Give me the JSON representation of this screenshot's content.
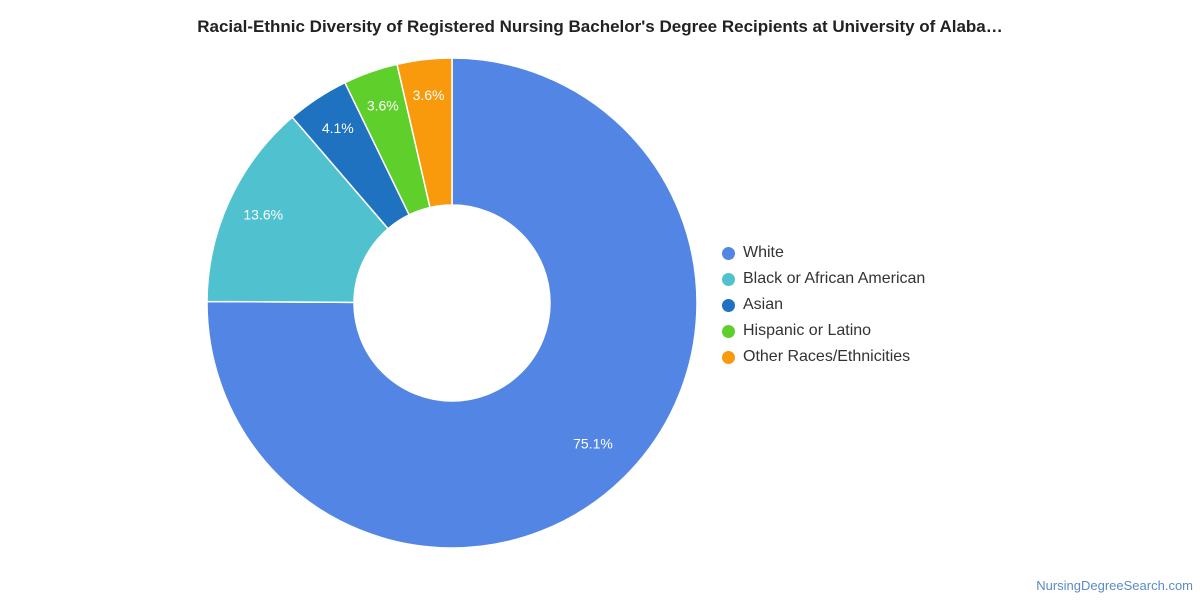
{
  "footer": "NursingDegreeSearch.com",
  "chart_data": {
    "type": "pie",
    "title": "Racial-Ethnic Diversity of Registered Nursing Bachelor's Degree Recipients at University of Alaba…",
    "legend_position": "right",
    "donut": true,
    "categories": [
      "White",
      "Black or African American",
      "Asian",
      "Hispanic or Latino",
      "Other Races/Ethnicities"
    ],
    "values": [
      75.1,
      13.6,
      4.1,
      3.6,
      3.6
    ],
    "data_labels": [
      "75.1%",
      "13.6%",
      "4.1%",
      "3.6%",
      "3.6%"
    ],
    "colors": [
      "#5386e4",
      "#4fc1cf",
      "#1f72c0",
      "#5fcf2c",
      "#f89a0c"
    ]
  }
}
